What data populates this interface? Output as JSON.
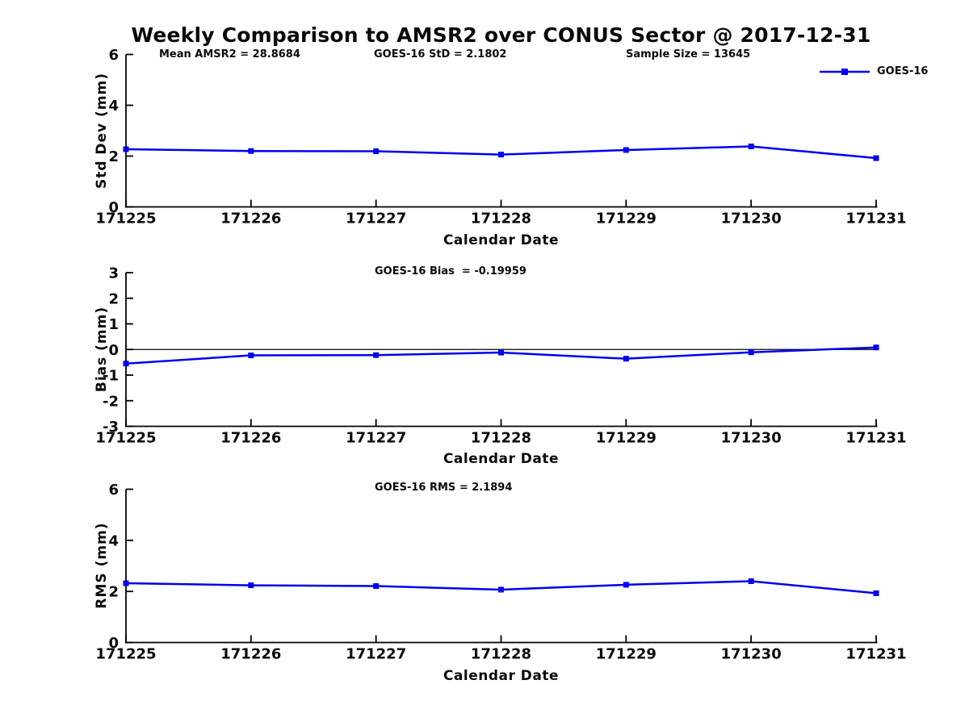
{
  "page": {
    "title": "Weekly Comparison to AMSR2 over CONUS Sector @ 2017-12-31",
    "background": "#ffffff",
    "line_color": "#0000ee",
    "axis_color": "#000000",
    "text_color": "#0a0a0a"
  },
  "legend": {
    "label": "GOES-16",
    "position": "top-right",
    "marker": "filled-square-on-line"
  },
  "chart_data": [
    {
      "type": "line",
      "panel": "std-dev",
      "annotations": [
        "Mean AMSR2 = 28.8684",
        "GOES-16 StD = 2.1802",
        "Sample Size = 13645"
      ],
      "categories": [
        "171225",
        "171226",
        "171227",
        "171228",
        "171229",
        "171230",
        "171231"
      ],
      "series": [
        {
          "name": "GOES-16",
          "values": [
            2.27,
            2.2,
            2.19,
            2.06,
            2.24,
            2.38,
            1.92
          ]
        }
      ],
      "xlabel": "Calendar Date",
      "ylabel": "Std Dev (mm)",
      "ylim": [
        0,
        6
      ],
      "yticks": [
        0,
        2,
        4,
        6
      ],
      "grid": false,
      "zero_line": false
    },
    {
      "type": "line",
      "panel": "bias",
      "annotations": [
        "GOES-16 Bias  = -0.19959"
      ],
      "categories": [
        "171225",
        "171226",
        "171227",
        "171228",
        "171229",
        "171230",
        "171231"
      ],
      "series": [
        {
          "name": "GOES-16",
          "values": [
            -0.55,
            -0.23,
            -0.22,
            -0.12,
            -0.36,
            -0.11,
            0.08
          ]
        }
      ],
      "xlabel": "Calendar Date",
      "ylabel": "Bias (mm)",
      "ylim": [
        -3,
        3
      ],
      "yticks": [
        -3,
        -2,
        -1,
        0,
        1,
        2,
        3
      ],
      "grid": false,
      "zero_line": true
    },
    {
      "type": "line",
      "panel": "rms",
      "annotations": [
        "GOES-16 RMS = 2.1894"
      ],
      "categories": [
        "171225",
        "171226",
        "171227",
        "171228",
        "171229",
        "171230",
        "171231"
      ],
      "series": [
        {
          "name": "GOES-16",
          "values": [
            2.32,
            2.24,
            2.21,
            2.07,
            2.26,
            2.4,
            1.93
          ]
        }
      ],
      "xlabel": "Calendar Date",
      "ylabel": "RMS (mm)",
      "ylim": [
        0,
        6
      ],
      "yticks": [
        0,
        2,
        4,
        6
      ],
      "grid": false,
      "zero_line": false
    }
  ]
}
